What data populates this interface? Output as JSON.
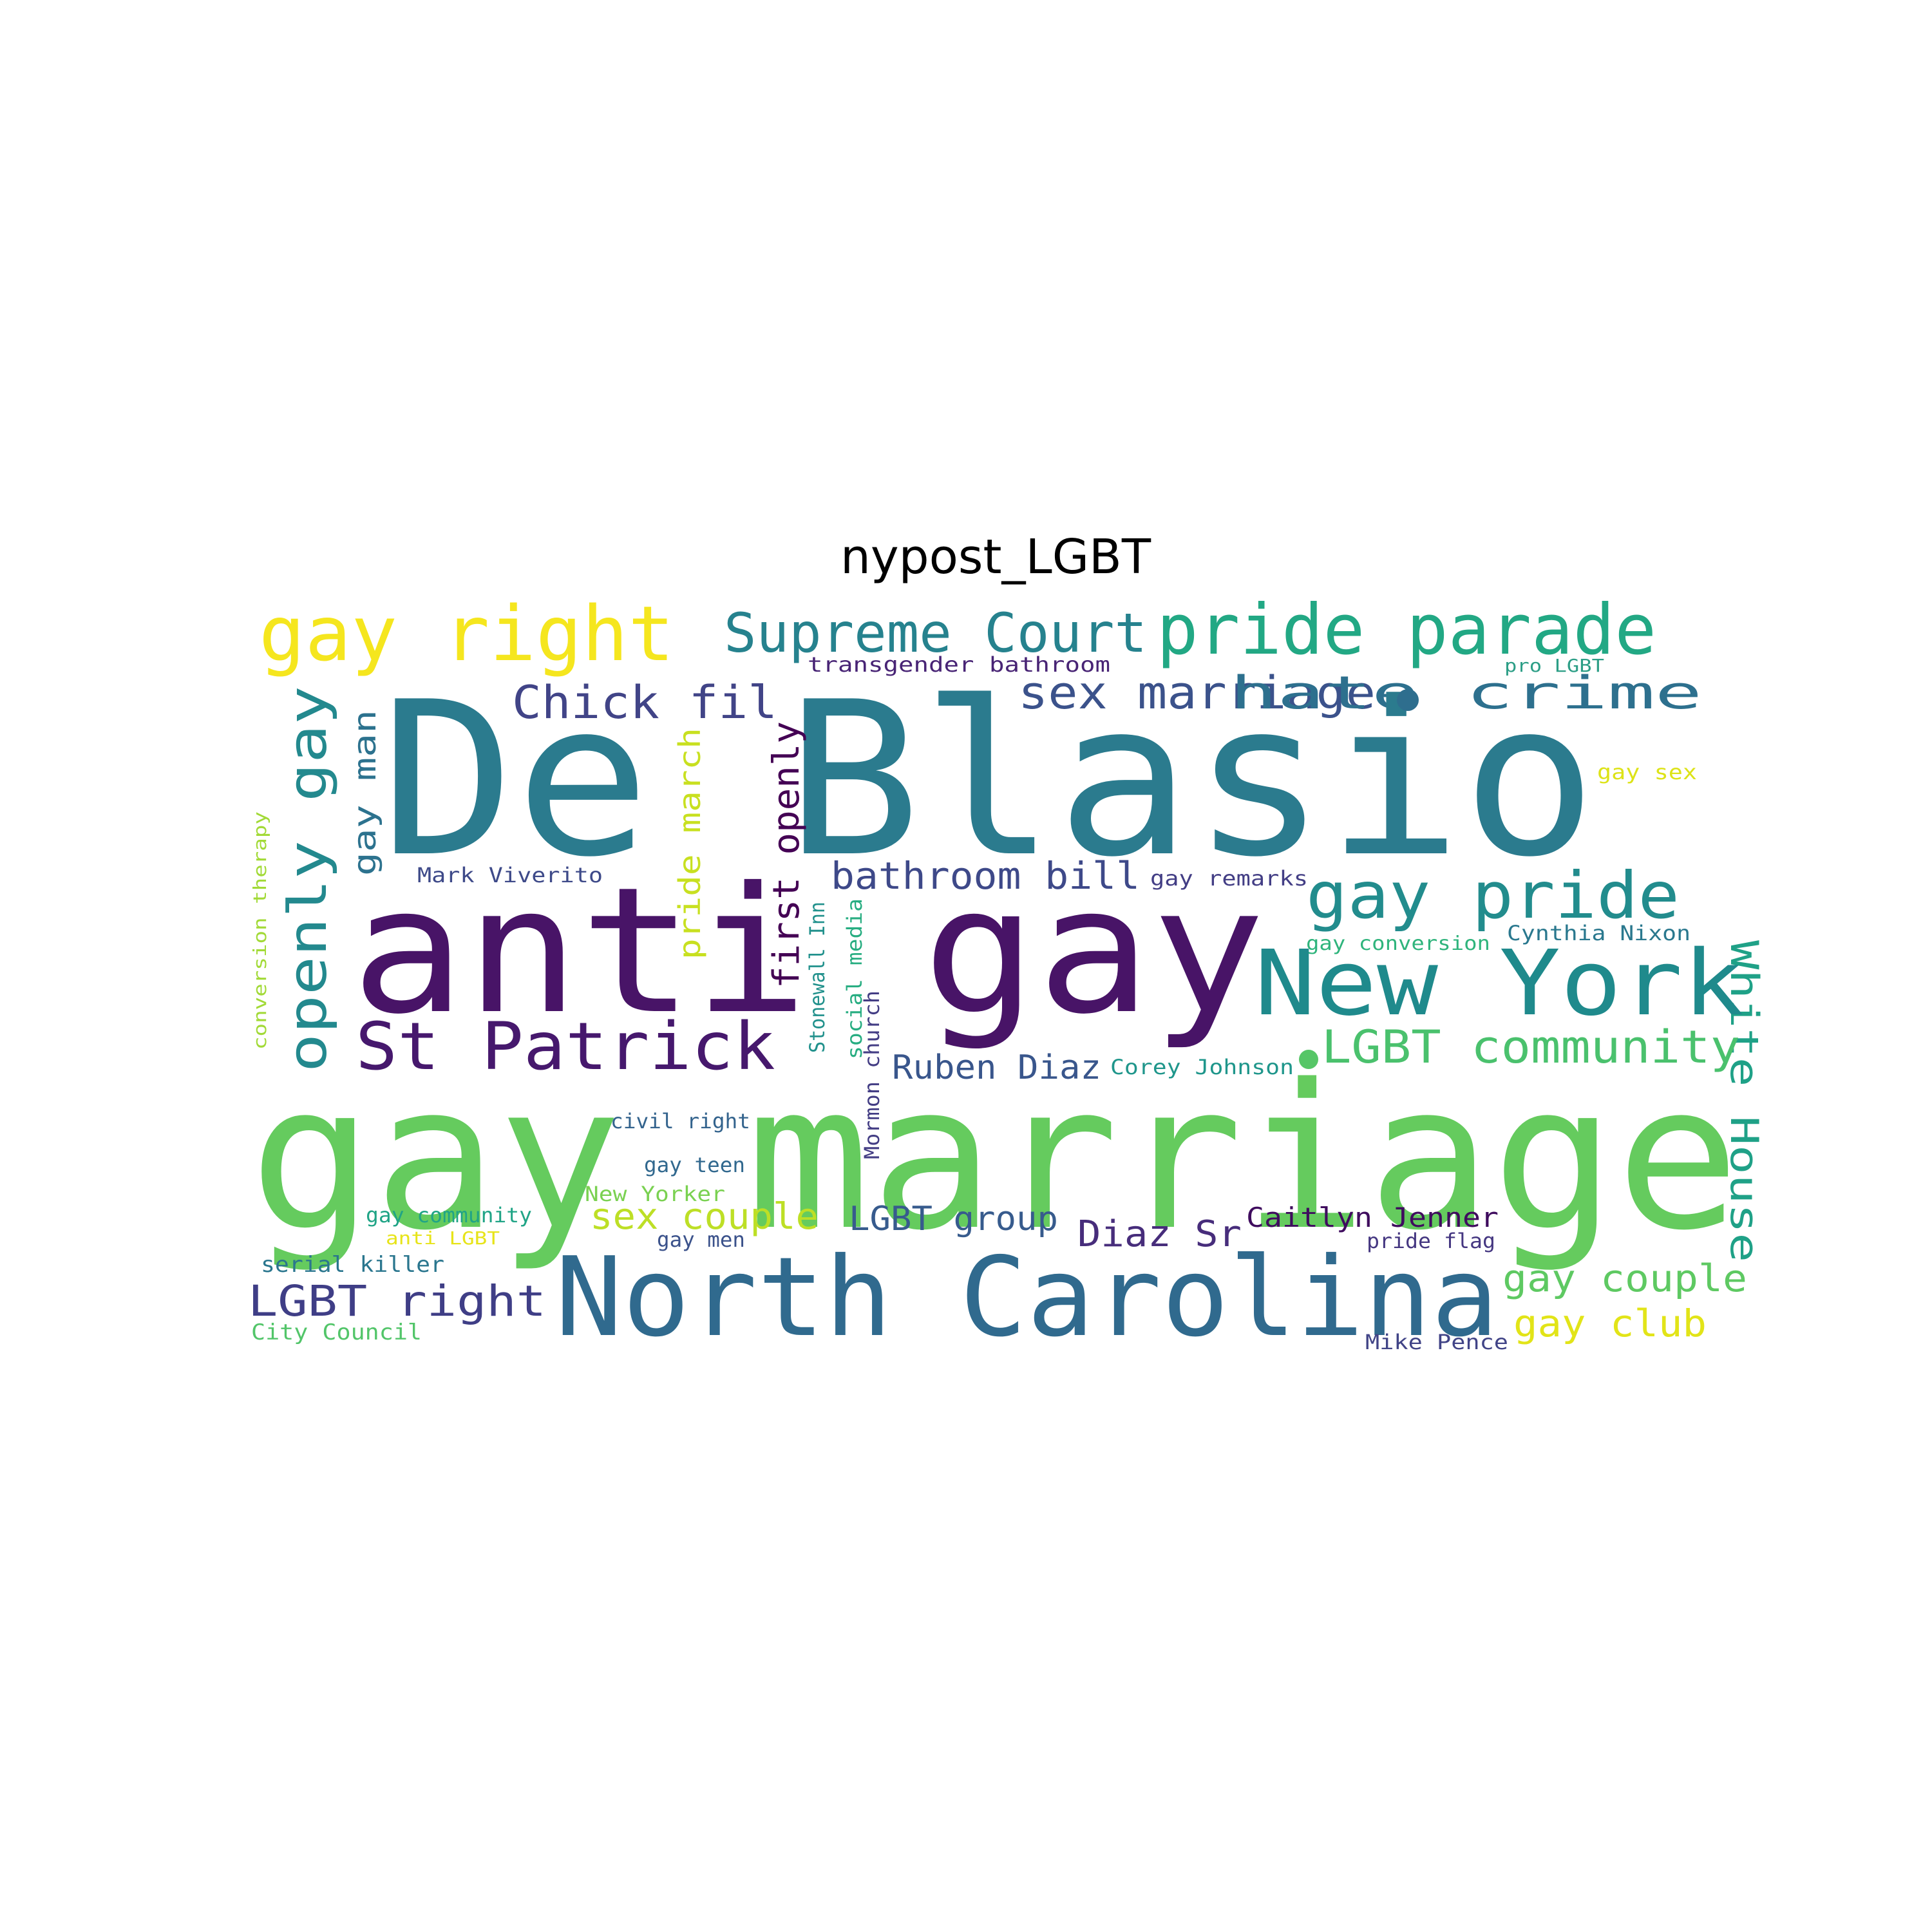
{
  "title": "nypost_LGBT",
  "words": [
    {
      "text": "gay right",
      "color": "#f5e61e"
    },
    {
      "text": "Supreme Court",
      "color": "#26828e"
    },
    {
      "text": "pride parade",
      "color": "#22a884"
    },
    {
      "text": "transgender bathroom",
      "color": "#482475"
    },
    {
      "text": "pro LGBT",
      "color": "#2c9e86"
    },
    {
      "text": "Chick fil",
      "color": "#414487"
    },
    {
      "text": "sex marriage",
      "color": "#3b528b"
    },
    {
      "text": "hate crime",
      "color": "#2d708e"
    },
    {
      "text": "De Blasio",
      "color": "#2b7b8e"
    },
    {
      "text": "White House",
      "color": "#1fa187"
    },
    {
      "text": "gay sex",
      "color": "#dde318"
    },
    {
      "text": "gay man",
      "color": "#2c728e"
    },
    {
      "text": "openly gay",
      "color": "#23898e"
    },
    {
      "text": "pride march",
      "color": "#c8e020"
    },
    {
      "text": "first openly",
      "color": "#440154"
    },
    {
      "text": "conversion therapy",
      "color": "#a2da37"
    },
    {
      "text": "Mark Viverito",
      "color": "#3e4a89"
    },
    {
      "text": "bathroom bill",
      "color": "#3e4989"
    },
    {
      "text": "gay remarks",
      "color": "#433e85"
    },
    {
      "text": "gay pride",
      "color": "#228c8d"
    },
    {
      "text": "anti gay",
      "color": "#481467"
    },
    {
      "text": "Cynthia Nixon",
      "color": "#2a788e"
    },
    {
      "text": "gay conversion",
      "color": "#2fb47c"
    },
    {
      "text": "New York",
      "color": "#1f8a8c"
    },
    {
      "text": "Stonewall Inn",
      "color": "#21918c"
    },
    {
      "text": "social media",
      "color": "#27ad81"
    },
    {
      "text": "Mormon church",
      "color": "#433d84"
    },
    {
      "text": "St Patrick",
      "color": "#46186d"
    },
    {
      "text": "Ruben Diaz",
      "color": "#39568c"
    },
    {
      "text": "Corey Johnson",
      "color": "#1f968b"
    },
    {
      "text": "LGBT community",
      "color": "#4ac16d"
    },
    {
      "text": "gay marriage",
      "color": "#65cb5e"
    },
    {
      "text": "civil right",
      "color": "#33638d"
    },
    {
      "text": "gay teen",
      "color": "#31688e"
    },
    {
      "text": "New Yorker",
      "color": "#7ad151"
    },
    {
      "text": "gay community",
      "color": "#20a486"
    },
    {
      "text": "sex couple",
      "color": "#bddf26"
    },
    {
      "text": "LGBT group",
      "color": "#375b8d"
    },
    {
      "text": "Caitlyn Jenner",
      "color": "#3f0c5e"
    },
    {
      "text": "Diaz Sr",
      "color": "#472d7b"
    },
    {
      "text": "anti LGBT",
      "color": "#e7e419"
    },
    {
      "text": "gay men",
      "color": "#3b528b"
    },
    {
      "text": "pride flag",
      "color": "#453781"
    },
    {
      "text": "serial killer",
      "color": "#2a768e"
    },
    {
      "text": "North Carolina",
      "color": "#306a8e"
    },
    {
      "text": "gay couple",
      "color": "#5ec962"
    },
    {
      "text": "LGBT right",
      "color": "#3f3e86"
    },
    {
      "text": "gay club",
      "color": "#e2e418"
    },
    {
      "text": "City Council",
      "color": "#52c569"
    },
    {
      "text": "Mike Pence",
      "color": "#414487"
    },
    {
      "text": "",
      "color": "#2e6e8e"
    },
    {
      "text": "",
      "color": "#56c667"
    }
  ]
}
